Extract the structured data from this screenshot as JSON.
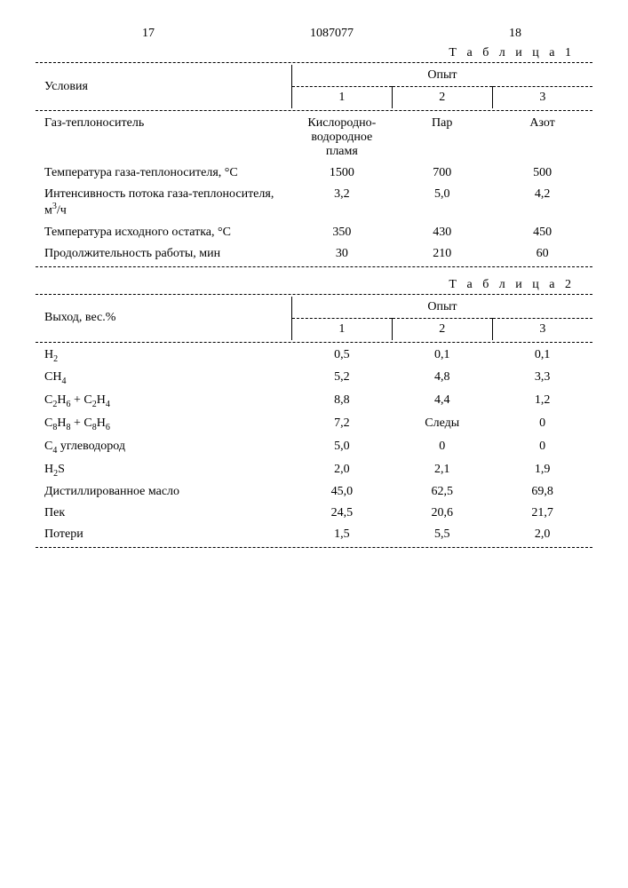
{
  "header": {
    "left_page": "17",
    "doc_number": "1087077",
    "right_page": "18"
  },
  "table1": {
    "caption": "Т а б л и ц а  1",
    "col_header_left": "Условия",
    "col_header_group": "Опыт",
    "col_headers": [
      "1",
      "2",
      "3"
    ],
    "rows": [
      {
        "label": "Газ-теплоноситель",
        "v1": "Кислородно-водородное пламя",
        "v2": "Пар",
        "v3": "Азот"
      },
      {
        "label": "Температура газа-теплоносителя, °С",
        "v1": "1500",
        "v2": "700",
        "v3": "500"
      },
      {
        "label": "Интенсивность потока газа-теплоносителя, м³/ч",
        "v1": "3,2",
        "v2": "5,0",
        "v3": "4,2"
      },
      {
        "label": "Температура исходного остатка, °С",
        "v1": "350",
        "v2": "430",
        "v3": "450"
      },
      {
        "label": "Продолжительность работы, мин",
        "v1": "30",
        "v2": "210",
        "v3": "60"
      }
    ]
  },
  "table2": {
    "caption": "Т а б л и ц а 2",
    "col_header_left": "Выход, вес.%",
    "col_header_group": "Опыт",
    "col_headers": [
      "1",
      "2",
      "3"
    ],
    "rows": [
      {
        "label": "H₂",
        "v1": "0,5",
        "v2": "0,1",
        "v3": "0,1"
      },
      {
        "label": "CH₄",
        "v1": "5,2",
        "v2": "4,8",
        "v3": "3,3"
      },
      {
        "label": "C₂H₆ + C₂H₄",
        "v1": "8,8",
        "v2": "4,4",
        "v3": "1,2"
      },
      {
        "label": "C₈H₈ + C₈H₆",
        "v1": "7,2",
        "v2": "Следы",
        "v3": "0"
      },
      {
        "label": "C₄  углеводород",
        "v1": "5,0",
        "v2": "0",
        "v3": "0"
      },
      {
        "label": "H₂S",
        "v1": "2,0",
        "v2": "2,1",
        "v3": "1,9"
      },
      {
        "label": "Дистиллированное масло",
        "v1": "45,0",
        "v2": "62,5",
        "v3": "69,8"
      },
      {
        "label": "Пек",
        "v1": "24,5",
        "v2": "20,6",
        "v3": "21,7"
      },
      {
        "label": "Потери",
        "v1": "1,5",
        "v2": "5,5",
        "v3": "2,0"
      }
    ]
  }
}
